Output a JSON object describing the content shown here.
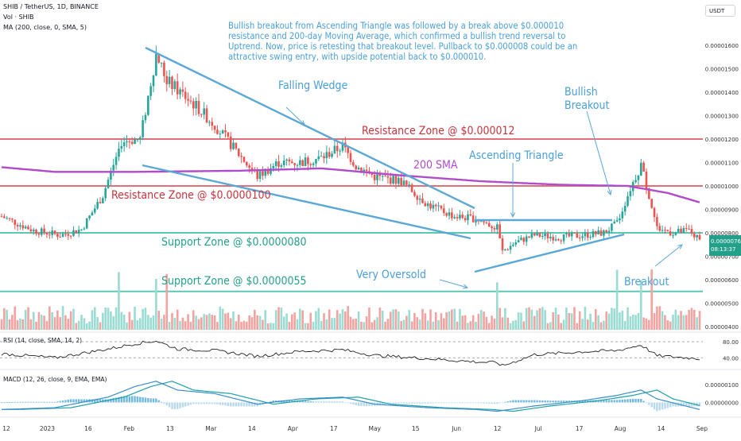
{
  "header": {
    "symbol_line": "SHIB / TetherUS, 1D, BINANCE",
    "vol_line": "Vol · SHIB",
    "ma_line": "MA (200, close, 0, SMA, 5)",
    "currency_button": "USDT"
  },
  "annotation_text": "Bullish breakout from Ascending Triangle was followed by a break above $0.000010 resistance and 200-day Moving Average, which confirmed a bullish trend reversal to Uptrend. Now, price is retesting that breakout level. Pullback to $0.000008 could be an attractive swing entry, with upside potential back to $0.000010.",
  "price_tag": {
    "price": "0.00000767",
    "countdown": "08:13:37"
  },
  "colors": {
    "up": "#26a69a",
    "down": "#ef5350",
    "sma": "#b04ccc",
    "drawing": "#5aa8d8",
    "resistance": "#e0707a",
    "support": "#5cc8b4",
    "resistance_text": "#c8323c",
    "support_text": "#22a08a"
  },
  "chart_data": [
    {
      "type": "candlestick",
      "title": "SHIB / TetherUS, 1D, BINANCE",
      "y_axis_ticks": [
        "0.00001600",
        "0.00001500",
        "0.00001400",
        "0.00001300",
        "0.00001200",
        "0.00001100",
        "0.00001000",
        "0.00000900",
        "0.00000800",
        "0.00000700",
        "0.00000600",
        "0.00000500",
        "0.00000400"
      ],
      "y_range": [
        3.8e-06,
        1.73e-05
      ],
      "x_axis_labels": [
        "12",
        "2023",
        "16",
        "Feb",
        "13",
        "Mar",
        "14",
        "Apr",
        "17",
        "May",
        "15",
        "Jun",
        "12",
        "Jul",
        "17",
        "Aug",
        "14",
        "Sep"
      ],
      "candle_count": 248,
      "price_anchors": [
        [
          0,
          8.7e-06
        ],
        [
          12,
          8.1e-06
        ],
        [
          22,
          7.9e-06
        ],
        [
          30,
          8.15e-06
        ],
        [
          38,
          9.6e-06
        ],
        [
          45,
          1.19e-05
        ],
        [
          52,
          1.2e-05
        ],
        [
          58,
          1.56e-05
        ],
        [
          62,
          1.45e-05
        ],
        [
          67,
          1.4e-05
        ],
        [
          73,
          1.34e-05
        ],
        [
          80,
          1.26e-05
        ],
        [
          88,
          1.15e-05
        ],
        [
          96,
          1.04e-05
        ],
        [
          104,
          1.1e-05
        ],
        [
          112,
          1.1e-05
        ],
        [
          120,
          1.12e-05
        ],
        [
          128,
          1.17e-05
        ],
        [
          133,
          1.085e-05
        ],
        [
          140,
          1.04e-05
        ],
        [
          150,
          1.02e-05
        ],
        [
          160,
          9.2e-06
        ],
        [
          170,
          8.7e-06
        ],
        [
          178,
          8.6e-06
        ],
        [
          186,
          8.2e-06
        ],
        [
          188,
          7.2e-06
        ],
        [
          193,
          7.6e-06
        ],
        [
          200,
          7.9e-06
        ],
        [
          210,
          7.8e-06
        ],
        [
          218,
          7.9e-06
        ],
        [
          226,
          8e-06
        ],
        [
          231,
          8.4e-06
        ],
        [
          236,
          9.9e-06
        ],
        [
          240,
          1.09e-05
        ],
        [
          243,
          9.6e-06
        ],
        [
          246,
          8.2e-06
        ],
        [
          252,
          8e-06
        ],
        [
          258,
          8.1e-06
        ],
        [
          262,
          7.67e-06
        ]
      ],
      "sma_anchors": [
        [
          0,
          1.08e-05
        ],
        [
          20,
          1.06e-05
        ],
        [
          50,
          1.06e-05
        ],
        [
          90,
          1.065e-05
        ],
        [
          120,
          1.075e-05
        ],
        [
          150,
          1.045e-05
        ],
        [
          180,
          1.02e-05
        ],
        [
          210,
          1.005e-05
        ],
        [
          235,
          1e-05
        ],
        [
          250,
          9.7e-06
        ],
        [
          262,
          9.3e-06
        ]
      ],
      "series": [
        {
          "name": "SHIB",
          "kind": "candles"
        },
        {
          "name": "MA (200, close, 0, SMA, 5)",
          "kind": "line"
        }
      ],
      "horizontal_levels": [
        {
          "label": "Resistance Zone @ $0.000012",
          "value": 1.2e-05,
          "kind": "resistance"
        },
        {
          "label": "Resistance Zone @ $0.0000100",
          "value": 1e-05,
          "kind": "resistance"
        },
        {
          "label": "Support Zone @ $0.0000080",
          "value": 8e-06,
          "kind": "support"
        },
        {
          "label": "Support Zone @ $0.0000055",
          "value": 5.5e-06,
          "kind": "support"
        }
      ],
      "annotations": [
        "Falling Wedge",
        "200 SMA",
        "Ascending Triangle",
        "Bullish Breakout",
        "Very Oversold",
        "Breakout"
      ],
      "last_price": 7.67e-06
    },
    {
      "type": "bar",
      "title": "Vol · SHIB",
      "note": "volume histogram beneath price"
    },
    {
      "type": "line",
      "title": "RSI (14, close, SMA, 14, 2)",
      "y_axis_ticks": [
        "80.00",
        "40.00"
      ],
      "y_range": [
        15,
        90
      ],
      "anchors": [
        [
          0,
          50
        ],
        [
          20,
          40
        ],
        [
          40,
          62
        ],
        [
          50,
          75
        ],
        [
          58,
          82
        ],
        [
          66,
          62
        ],
        [
          80,
          58
        ],
        [
          96,
          44
        ],
        [
          112,
          56
        ],
        [
          128,
          60
        ],
        [
          140,
          46
        ],
        [
          160,
          38
        ],
        [
          178,
          30
        ],
        [
          186,
          28
        ],
        [
          188,
          20
        ],
        [
          200,
          48
        ],
        [
          218,
          55
        ],
        [
          231,
          58
        ],
        [
          240,
          72
        ],
        [
          246,
          45
        ],
        [
          262,
          38
        ]
      ]
    },
    {
      "type": "line",
      "title": "MACD (12, 26, close, 9, EMA, EMA)",
      "y_axis_ticks": [
        "0.00000100",
        "0.00000000"
      ],
      "y_range": [
        -7e-07,
        1.55e-06
      ],
      "macd_anchors": [
        [
          0,
          -4e-07
        ],
        [
          20,
          -3e-07
        ],
        [
          40,
          3e-07
        ],
        [
          50,
          9e-07
        ],
        [
          58,
          1.2e-06
        ],
        [
          66,
          7e-07
        ],
        [
          80,
          5e-07
        ],
        [
          96,
          -1e-07
        ],
        [
          112,
          2e-07
        ],
        [
          128,
          3e-07
        ],
        [
          140,
          -1e-07
        ],
        [
          160,
          -3e-07
        ],
        [
          178,
          -4e-07
        ],
        [
          186,
          -5e-07
        ],
        [
          200,
          -2e-07
        ],
        [
          218,
          1e-07
        ],
        [
          231,
          4e-07
        ],
        [
          240,
          7e-07
        ],
        [
          246,
          2e-07
        ],
        [
          262,
          -4e-07
        ]
      ],
      "series": [
        {
          "name": "MACD"
        },
        {
          "name": "Signal"
        }
      ]
    }
  ]
}
